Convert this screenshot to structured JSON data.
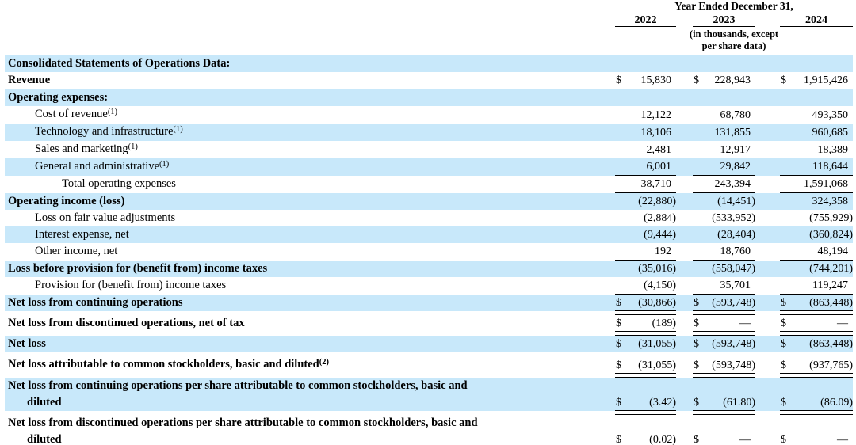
{
  "header": {
    "period_label": "Year Ended December 31,",
    "years": [
      "2022",
      "2023",
      "2024"
    ],
    "units_note_line1": "(in thousands, except",
    "units_note_line2": "per share data)"
  },
  "colors": {
    "row_shade": "#c8e8fa",
    "text": "#000000",
    "rule": "#000000"
  },
  "table": {
    "rows": [
      {
        "label": "Consolidated Statements of Operations Data:",
        "bold": true,
        "indent": 0,
        "shaded": true
      },
      {
        "label": "Revenue",
        "bold": true,
        "indent": 0,
        "shaded": false,
        "dollar": true,
        "values": [
          "15,830",
          "228,943",
          "1,915,426"
        ],
        "underline": "single"
      },
      {
        "label": "Operating expenses:",
        "bold": true,
        "indent": 0,
        "shaded": true
      },
      {
        "label": "Cost of revenue",
        "sup": "(1)",
        "indent": 1,
        "shaded": false,
        "values": [
          "12,122",
          "68,780",
          "493,350"
        ]
      },
      {
        "label": "Technology and infrastructure",
        "sup": "(1)",
        "indent": 1,
        "shaded": true,
        "values": [
          "18,106",
          "131,855",
          "960,685"
        ]
      },
      {
        "label": "Sales and marketing",
        "sup": "(1)",
        "indent": 1,
        "shaded": false,
        "values": [
          "2,481",
          "12,917",
          "18,389"
        ]
      },
      {
        "label": "General and administrative",
        "sup": "(1)",
        "indent": 1,
        "shaded": true,
        "values": [
          "6,001",
          "29,842",
          "118,644"
        ],
        "underline": "single"
      },
      {
        "label": "Total operating expenses",
        "indent": 2,
        "shaded": false,
        "values": [
          "38,710",
          "243,394",
          "1,591,068"
        ],
        "underline": "single"
      },
      {
        "label": "Operating income (loss)",
        "bold": true,
        "indent": 0,
        "shaded": true,
        "values": [
          "(22,880)",
          "(14,451)",
          "324,358"
        ]
      },
      {
        "label": "Loss on fair value adjustments",
        "indent": 1,
        "shaded": false,
        "values": [
          "(2,884)",
          "(533,952)",
          "(755,929)"
        ]
      },
      {
        "label": "Interest expense, net",
        "indent": 1,
        "shaded": true,
        "values": [
          "(9,444)",
          "(28,404)",
          "(360,824)"
        ]
      },
      {
        "label": "Other income, net",
        "indent": 1,
        "shaded": false,
        "values": [
          "192",
          "18,760",
          "48,194"
        ],
        "underline": "single"
      },
      {
        "label": "Loss before provision for (benefit from) income taxes",
        "bold": true,
        "indent": 0,
        "shaded": true,
        "values": [
          "(35,016)",
          "(558,047)",
          "(744,201)"
        ]
      },
      {
        "label": "Provision for (benefit from) income taxes",
        "indent": 1,
        "shaded": false,
        "values": [
          "(4,150)",
          "35,701",
          "119,247"
        ],
        "underline": "single"
      },
      {
        "label": "Net loss from continuing operations",
        "bold": true,
        "indent": 0,
        "shaded": true,
        "dollar": true,
        "values": [
          "(30,866)",
          "(593,748)",
          "(863,448)"
        ],
        "underline": "double",
        "gap_after": true
      },
      {
        "label": "Net loss from discontinued operations, net of tax",
        "bold": true,
        "indent": 0,
        "shaded": false,
        "dollar": true,
        "values": [
          "(189)",
          "—",
          "—"
        ],
        "underline": "double",
        "gap_after": true
      },
      {
        "label": "Net loss",
        "bold": true,
        "indent": 0,
        "shaded": true,
        "dollar": true,
        "values": [
          "(31,055)",
          "(593,748)",
          "(863,448)"
        ],
        "underline": "double",
        "gap_after": true
      },
      {
        "label": "Net loss attributable to common stockholders, basic and diluted",
        "sup": "(2)",
        "bold": true,
        "indent": 0,
        "shaded": false,
        "dollar": true,
        "values": [
          "(31,055)",
          "(593,748)",
          "(937,765)"
        ],
        "underline": "double",
        "gap_after": true
      },
      {
        "label": "Net loss from continuing operations per share attributable to common stockholders, basic and",
        "label2": "diluted",
        "bold": true,
        "indent": 0,
        "shaded": true,
        "dollar": true,
        "values": [
          "(3.42)",
          "(61.80)",
          "(86.09)"
        ],
        "underline": "double",
        "gap_after": true
      },
      {
        "label": "Net loss from discontinued operations per share attributable to common stockholders, basic and",
        "label2": "diluted",
        "bold": true,
        "indent": 0,
        "shaded": false,
        "dollar": true,
        "values": [
          "(0.02)",
          "—",
          "—"
        ],
        "underline": "double"
      }
    ]
  }
}
